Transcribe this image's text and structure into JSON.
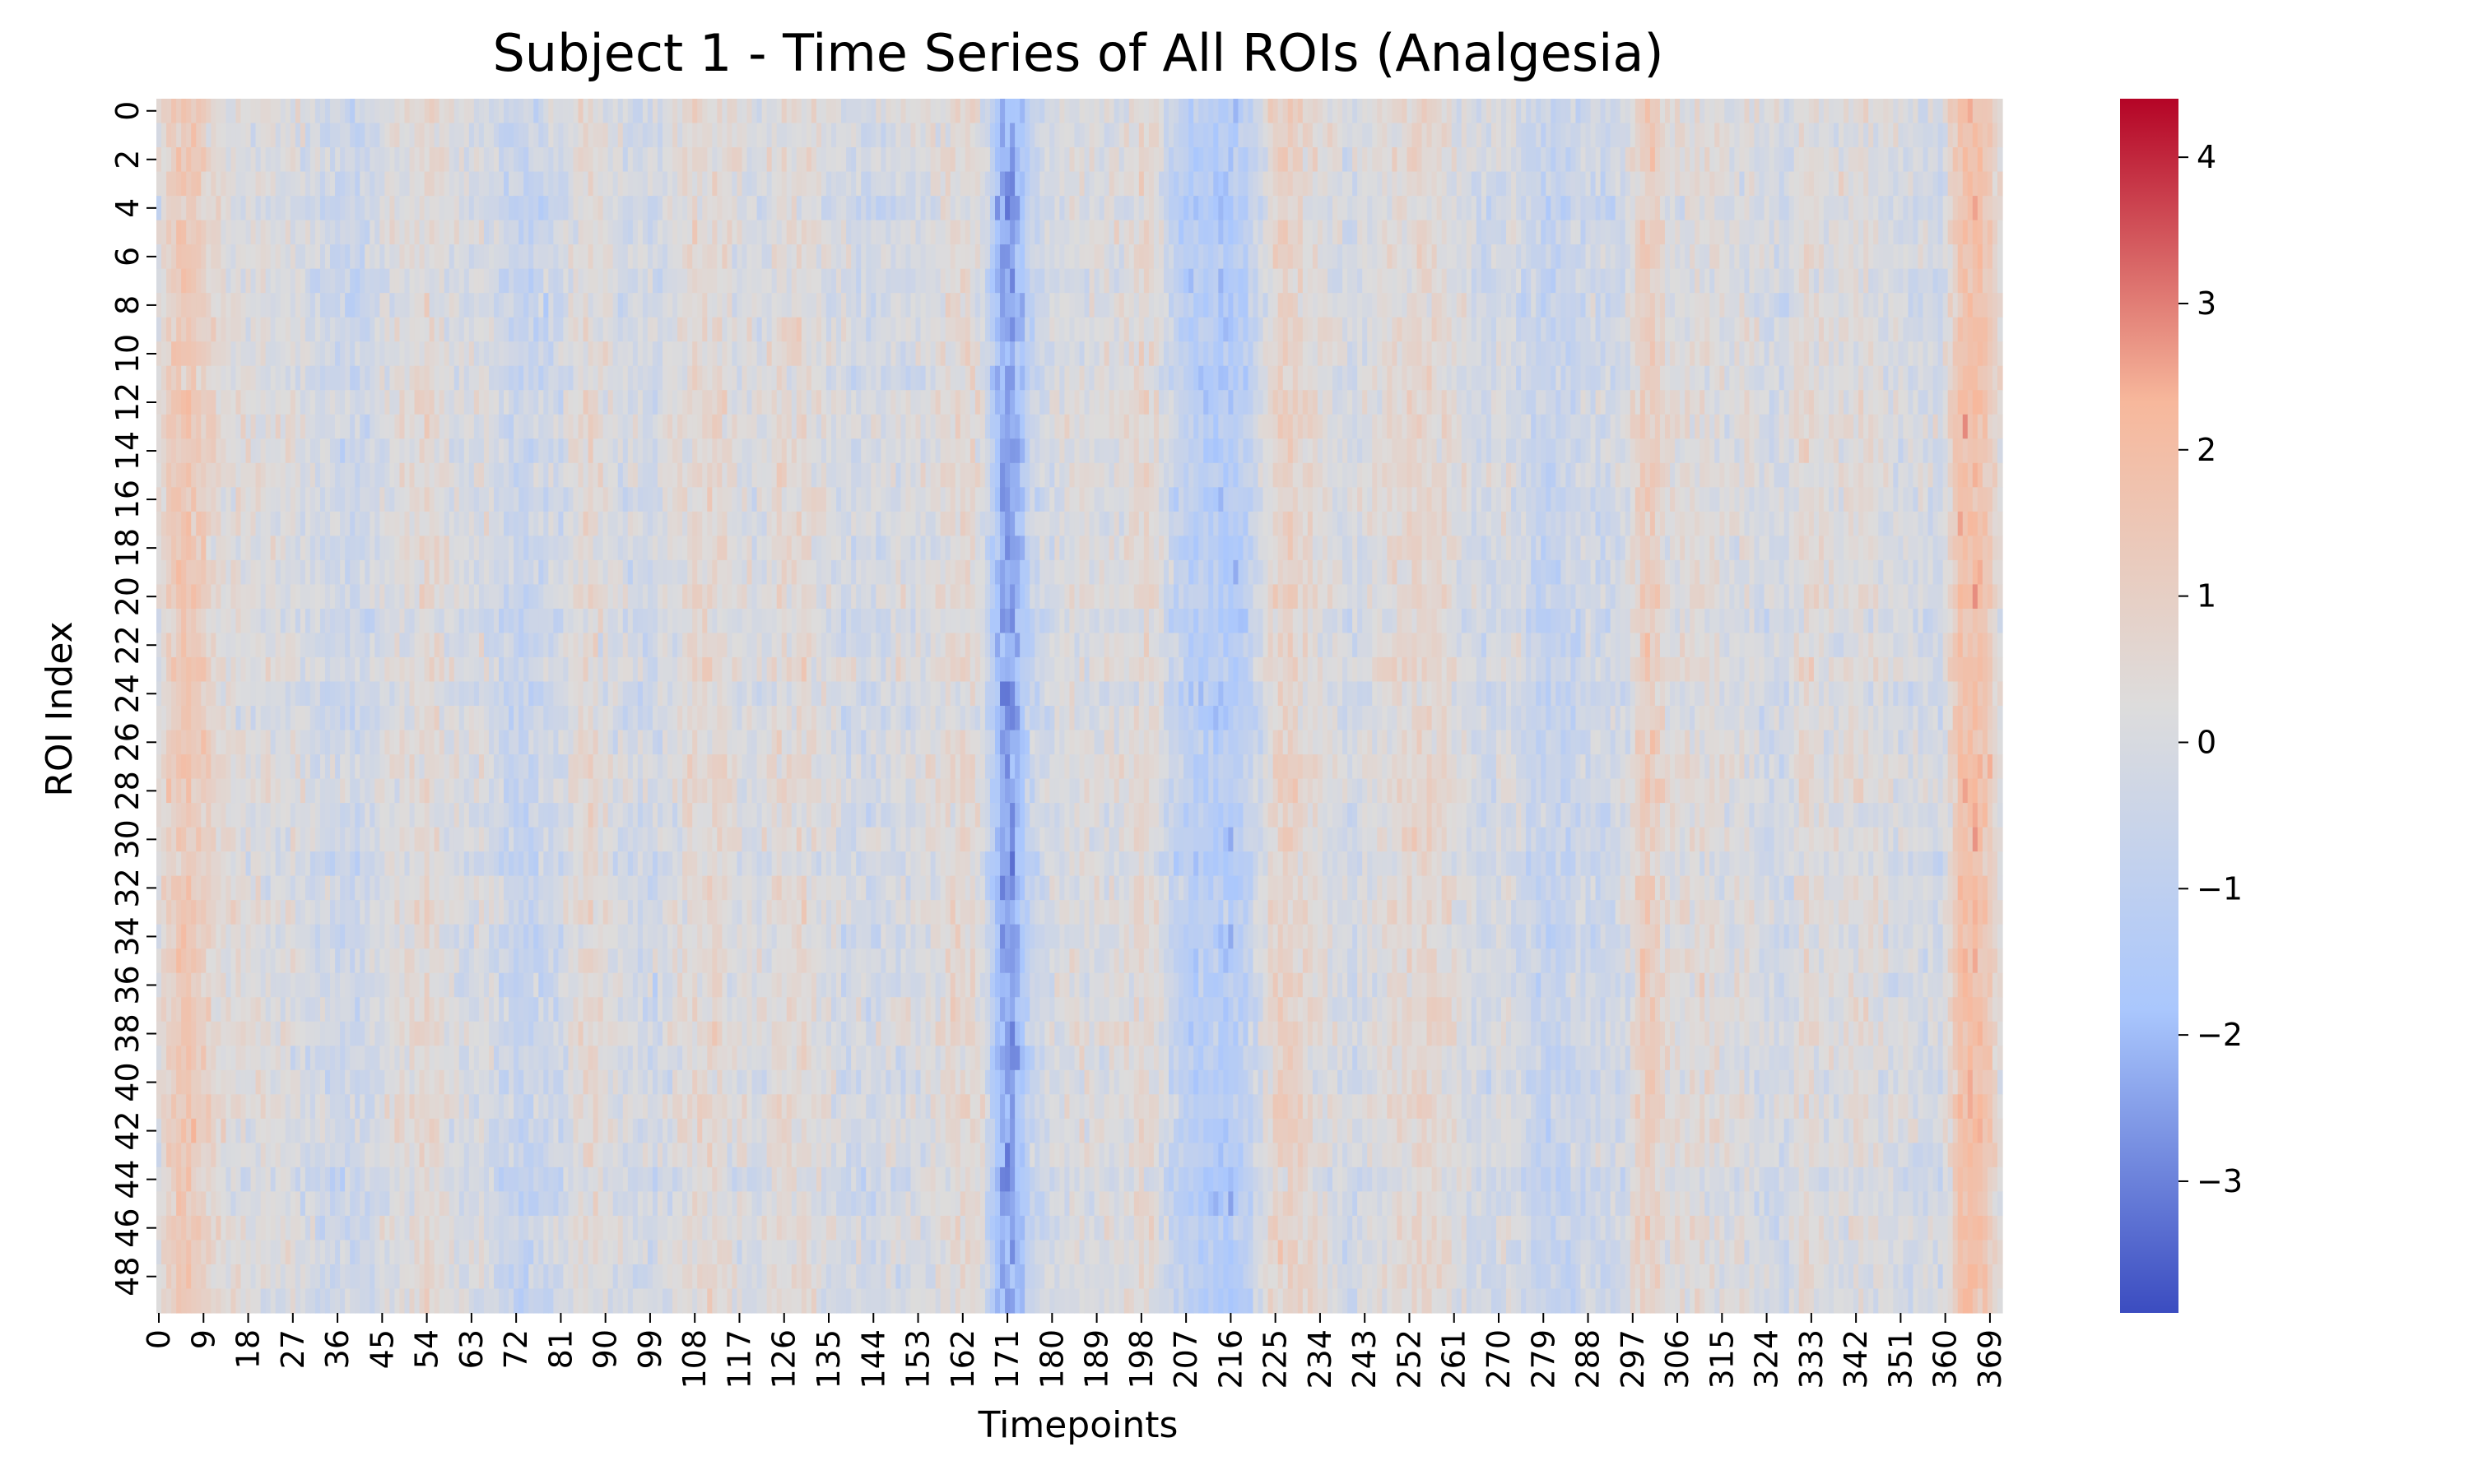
{
  "chart_data": {
    "type": "heatmap",
    "title": "Subject 1 - Time Series of All ROIs (Analgesia)",
    "xlabel": "Timepoints",
    "ylabel": "ROI Index",
    "x_range": [
      0,
      371
    ],
    "y_range": [
      0,
      49
    ],
    "n_timepoints": 372,
    "n_rois": 50,
    "x_tick_labels": [
      "0",
      "9",
      "18",
      "27",
      "36",
      "45",
      "54",
      "63",
      "72",
      "81",
      "90",
      "99",
      "108",
      "117",
      "126",
      "135",
      "144",
      "153",
      "162",
      "171",
      "180",
      "189",
      "198",
      "207",
      "216",
      "225",
      "234",
      "243",
      "252",
      "261",
      "270",
      "279",
      "288",
      "297",
      "306",
      "315",
      "324",
      "333",
      "342",
      "351",
      "360",
      "369"
    ],
    "y_tick_labels": [
      "0",
      "2",
      "4",
      "6",
      "8",
      "10",
      "12",
      "14",
      "16",
      "18",
      "20",
      "22",
      "24",
      "26",
      "28",
      "30",
      "32",
      "34",
      "36",
      "38",
      "40",
      "42",
      "44",
      "46",
      "48"
    ],
    "colormap": "coolwarm",
    "colormap_stops": [
      "#3b4cc0",
      "#aac7fd",
      "#dddcdc",
      "#f7b89c",
      "#b40426"
    ],
    "value_range": [
      -3.9,
      4.4
    ],
    "colorbar_ticks": [
      "4",
      "3",
      "2",
      "1",
      "0",
      "−1",
      "−2",
      "−3"
    ],
    "colorbar_tick_values": [
      4,
      3,
      2,
      1,
      0,
      -1,
      -2,
      -3
    ],
    "column_profile": [
      [
        0,
        0.2
      ],
      [
        2,
        1.0
      ],
      [
        4,
        1.3
      ],
      [
        6,
        1.5
      ],
      [
        8,
        1.2
      ],
      [
        11,
        0.6
      ],
      [
        14,
        0.3
      ],
      [
        18,
        0.2
      ],
      [
        22,
        0.1
      ],
      [
        27,
        0.1
      ],
      [
        32,
        -0.3
      ],
      [
        36,
        -0.4
      ],
      [
        40,
        -0.5
      ],
      [
        43,
        -0.3
      ],
      [
        47,
        0.2
      ],
      [
        51,
        0.3
      ],
      [
        54,
        0.6
      ],
      [
        58,
        0.2
      ],
      [
        62,
        -0.1
      ],
      [
        65,
        0.1
      ],
      [
        69,
        -0.4
      ],
      [
        73,
        -0.8
      ],
      [
        77,
        -0.5
      ],
      [
        81,
        -0.3
      ],
      [
        84,
        0.3
      ],
      [
        87,
        0.6
      ],
      [
        90,
        0.2
      ],
      [
        95,
        -0.2
      ],
      [
        100,
        -0.3
      ],
      [
        104,
        0.2
      ],
      [
        108,
        0.5
      ],
      [
        112,
        0.6
      ],
      [
        116,
        0.2
      ],
      [
        120,
        -0.1
      ],
      [
        125,
        0.4
      ],
      [
        129,
        0.5
      ],
      [
        133,
        0.2
      ],
      [
        138,
        -0.2
      ],
      [
        143,
        -0.3
      ],
      [
        148,
        -0.1
      ],
      [
        154,
        0.0
      ],
      [
        159,
        0.4
      ],
      [
        163,
        0.6
      ],
      [
        166,
        0.1
      ],
      [
        168,
        -1.2
      ],
      [
        170,
        -2.4
      ],
      [
        172,
        -2.5
      ],
      [
        174,
        -1.6
      ],
      [
        176,
        -0.6
      ],
      [
        179,
        -0.2
      ],
      [
        184,
        0.2
      ],
      [
        190,
        0.1
      ],
      [
        195,
        0.2
      ],
      [
        198,
        0.6
      ],
      [
        201,
        0.3
      ],
      [
        204,
        -0.6
      ],
      [
        208,
        -1.2
      ],
      [
        212,
        -1.3
      ],
      [
        216,
        -1.5
      ],
      [
        219,
        -1.0
      ],
      [
        222,
        -0.2
      ],
      [
        225,
        0.8
      ],
      [
        228,
        1.0
      ],
      [
        232,
        0.5
      ],
      [
        236,
        0.2
      ],
      [
        240,
        -0.2
      ],
      [
        244,
        0.1
      ],
      [
        248,
        0.4
      ],
      [
        252,
        0.6
      ],
      [
        256,
        0.7
      ],
      [
        260,
        0.4
      ],
      [
        264,
        -0.1
      ],
      [
        268,
        -0.3
      ],
      [
        272,
        0.1
      ],
      [
        276,
        -0.5
      ],
      [
        280,
        -0.8
      ],
      [
        284,
        -0.6
      ],
      [
        288,
        -0.3
      ],
      [
        292,
        -0.4
      ],
      [
        296,
        0.0
      ],
      [
        299,
        1.1
      ],
      [
        301,
        1.2
      ],
      [
        304,
        0.3
      ],
      [
        308,
        0.3
      ],
      [
        312,
        0.4
      ],
      [
        316,
        0.1
      ],
      [
        320,
        0.2
      ],
      [
        324,
        -0.2
      ],
      [
        328,
        -0.2
      ],
      [
        332,
        0.6
      ],
      [
        336,
        0.1
      ],
      [
        340,
        0.2
      ],
      [
        344,
        0.3
      ],
      [
        348,
        0.0
      ],
      [
        352,
        -0.1
      ],
      [
        356,
        -0.2
      ],
      [
        359,
        -0.3
      ],
      [
        361,
        0.6
      ],
      [
        363,
        1.8
      ],
      [
        366,
        1.9
      ],
      [
        369,
        1.3
      ],
      [
        371,
        0.3
      ]
    ]
  }
}
